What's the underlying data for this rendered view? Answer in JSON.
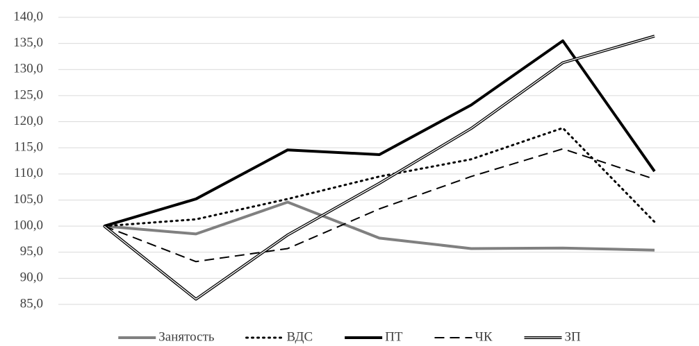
{
  "chart_data": {
    "type": "line",
    "categories": [
      null,
      null,
      null,
      null,
      null,
      null,
      null
    ],
    "series": [
      {
        "name": "Занятость",
        "color": "#808080",
        "style": "solid",
        "width": 4,
        "values": [
          100,
          98.5,
          104.6,
          97.7,
          95.7,
          95.8,
          95.4
        ]
      },
      {
        "name": "ВДС",
        "color": "#000000",
        "style": "dotted",
        "width": 3,
        "values": [
          100,
          101.3,
          105.2,
          109.5,
          112.8,
          118.8,
          100.8
        ]
      },
      {
        "name": "ПТ",
        "color": "#000000",
        "style": "solid",
        "width": 4,
        "values": [
          100,
          105.2,
          114.6,
          113.7,
          123.2,
          135.5,
          110.5
        ]
      },
      {
        "name": "ЧК",
        "color": "#000000",
        "style": "dashed",
        "width": 2,
        "values": [
          100,
          93.2,
          95.7,
          103.3,
          109.5,
          114.8,
          109.0
        ]
      },
      {
        "name": "ЗП",
        "color": "#000000",
        "style": "double",
        "width": 4,
        "values": [
          100,
          86.0,
          98.3,
          108.2,
          118.7,
          131.3,
          136.4
        ]
      }
    ],
    "ylim": [
      85,
      140
    ],
    "yticks": [
      {
        "value": 85,
        "label": "85,0"
      },
      {
        "value": 90,
        "label": "90,0"
      },
      {
        "value": 95,
        "label": "95,0"
      },
      {
        "value": 100,
        "label": "100,0"
      },
      {
        "value": 105,
        "label": "105,0"
      },
      {
        "value": 110,
        "label": "110,0"
      },
      {
        "value": 115,
        "label": "115,0"
      },
      {
        "value": 120,
        "label": "120,0"
      },
      {
        "value": 125,
        "label": "125,0"
      },
      {
        "value": 130,
        "label": "130,0"
      },
      {
        "value": 135,
        "label": "135,0"
      },
      {
        "value": 140,
        "label": "140,0"
      }
    ],
    "grid": true,
    "legend": "bottom"
  }
}
